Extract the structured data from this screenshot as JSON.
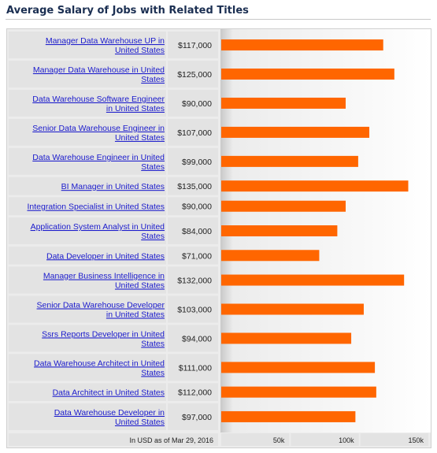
{
  "title": "Average Salary of Jobs with Related Titles",
  "chart_data": {
    "type": "bar",
    "orientation": "horizontal",
    "bar_color": "#ff6600",
    "categories": [
      [
        "Manager Data Warehouse UP in",
        "United States"
      ],
      [
        "Manager Data Warehouse in United",
        "States"
      ],
      [
        "Data Warehouse Software Engineer",
        "in United States"
      ],
      [
        "Senior Data Warehouse Engineer in",
        "United States"
      ],
      [
        "Data Warehouse Engineer in United",
        "States"
      ],
      [
        "BI Manager in United States"
      ],
      [
        "Integration Specialist in United States"
      ],
      [
        "Application System Analyst in United",
        "States"
      ],
      [
        "Data Developer in United States"
      ],
      [
        "Manager Business Intelligence in",
        "United States"
      ],
      [
        "Senior Data Warehouse Developer",
        "in United States"
      ],
      [
        "Ssrs Reports Developer in United",
        "States"
      ],
      [
        "Data Warehouse Architect in United",
        "States"
      ],
      [
        "Data Architect in United States"
      ],
      [
        "Data Warehouse Developer in",
        "United States"
      ]
    ],
    "values": [
      117000,
      125000,
      90000,
      107000,
      99000,
      135000,
      90000,
      84000,
      71000,
      132000,
      103000,
      94000,
      111000,
      112000,
      97000
    ],
    "value_labels": [
      "$117,000",
      "$125,000",
      "$90,000",
      "$107,000",
      "$99,000",
      "$135,000",
      "$90,000",
      "$84,000",
      "$71,000",
      "$132,000",
      "$103,000",
      "$94,000",
      "$111,000",
      "$112,000",
      "$97,000"
    ],
    "xlim": [
      0,
      150000
    ],
    "x_ticks": [
      50000,
      100000,
      150000
    ],
    "x_tick_labels": [
      "50k",
      "100k",
      "150k"
    ],
    "footnote": "In USD as of Mar 29, 2016"
  }
}
